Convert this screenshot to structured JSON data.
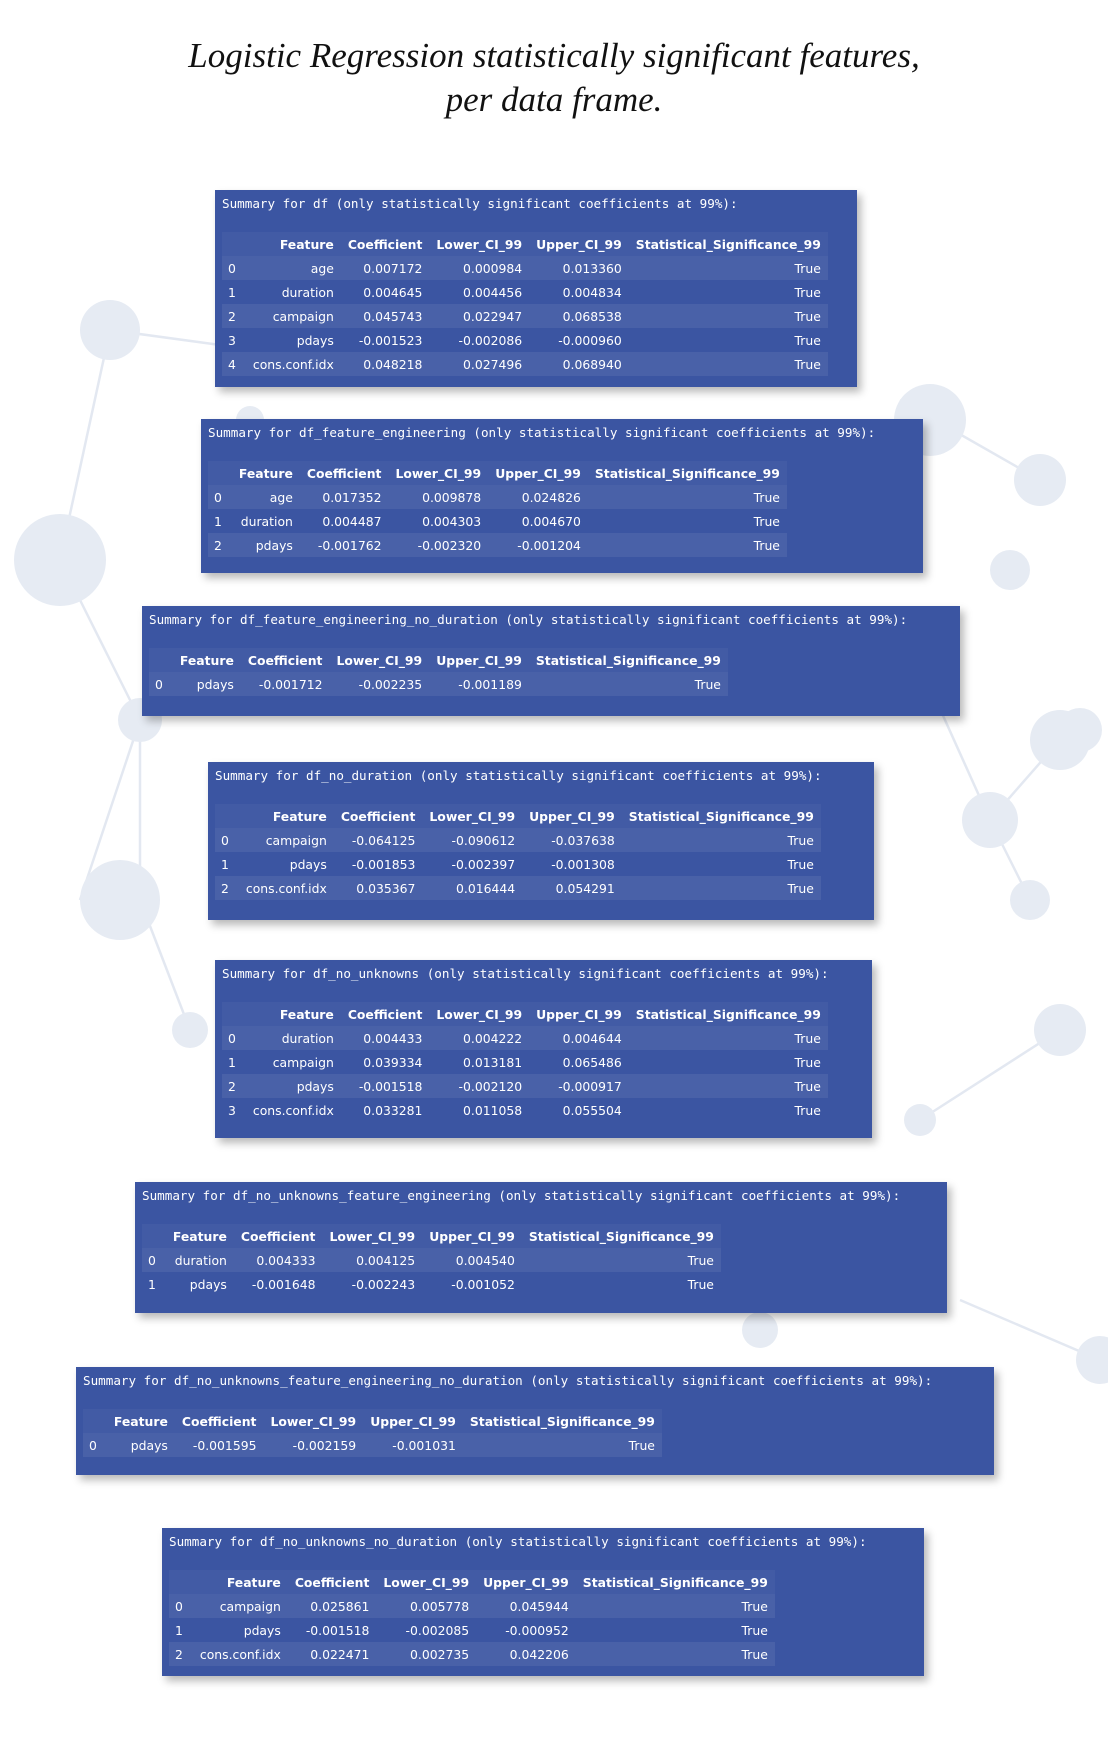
{
  "title": {
    "line1": "Logistic Regression statistically significant features,",
    "line2": "per data frame."
  },
  "columns": [
    "",
    "Feature",
    "Coefficient",
    "Lower_CI_99",
    "Upper_CI_99",
    "Statistical_Significance_99"
  ],
  "panels": [
    {
      "summary": "Summary for df (only statistically significant coefficients at 99%):",
      "rows": [
        [
          "0",
          "age",
          "0.007172",
          "0.000984",
          "0.013360",
          "True"
        ],
        [
          "1",
          "duration",
          "0.004645",
          "0.004456",
          "0.004834",
          "True"
        ],
        [
          "2",
          "campaign",
          "0.045743",
          "0.022947",
          "0.068538",
          "True"
        ],
        [
          "3",
          "pdays",
          "-0.001523",
          "-0.002086",
          "-0.000960",
          "True"
        ],
        [
          "4",
          "cons.conf.idx",
          "0.048218",
          "0.027496",
          "0.068940",
          "True"
        ]
      ]
    },
    {
      "summary": "Summary for df_feature_engineering (only statistically significant coefficients at 99%):",
      "rows": [
        [
          "0",
          "age",
          "0.017352",
          "0.009878",
          "0.024826",
          "True"
        ],
        [
          "1",
          "duration",
          "0.004487",
          "0.004303",
          "0.004670",
          "True"
        ],
        [
          "2",
          "pdays",
          "-0.001762",
          "-0.002320",
          "-0.001204",
          "True"
        ]
      ]
    },
    {
      "summary": "Summary for df_feature_engineering_no_duration (only statistically significant coefficients at 99%):",
      "rows": [
        [
          "0",
          "pdays",
          "-0.001712",
          "-0.002235",
          "-0.001189",
          "True"
        ]
      ]
    },
    {
      "summary": "Summary for df_no_duration (only statistically significant coefficients at 99%):",
      "rows": [
        [
          "0",
          "campaign",
          "-0.064125",
          "-0.090612",
          "-0.037638",
          "True"
        ],
        [
          "1",
          "pdays",
          "-0.001853",
          "-0.002397",
          "-0.001308",
          "True"
        ],
        [
          "2",
          "cons.conf.idx",
          "0.035367",
          "0.016444",
          "0.054291",
          "True"
        ]
      ]
    },
    {
      "summary": "Summary for df_no_unknowns (only statistically significant coefficients at 99%):",
      "rows": [
        [
          "0",
          "duration",
          "0.004433",
          "0.004222",
          "0.004644",
          "True"
        ],
        [
          "1",
          "campaign",
          "0.039334",
          "0.013181",
          "0.065486",
          "True"
        ],
        [
          "2",
          "pdays",
          "-0.001518",
          "-0.002120",
          "-0.000917",
          "True"
        ],
        [
          "3",
          "cons.conf.idx",
          "0.033281",
          "0.011058",
          "0.055504",
          "True"
        ]
      ]
    },
    {
      "summary": "Summary for df_no_unknowns_feature_engineering (only statistically significant coefficients at 99%):",
      "rows": [
        [
          "0",
          "duration",
          "0.004333",
          "0.004125",
          "0.004540",
          "True"
        ],
        [
          "1",
          "pdays",
          "-0.001648",
          "-0.002243",
          "-0.001052",
          "True"
        ]
      ]
    },
    {
      "summary": "Summary for df_no_unknowns_feature_engineering_no_duration (only statistically significant coefficients at 99%):",
      "rows": [
        [
          "0",
          "pdays",
          "-0.001595",
          "-0.002159",
          "-0.001031",
          "True"
        ]
      ]
    },
    {
      "summary": "Summary for df_no_unknowns_no_duration (only statistically significant coefficients at 99%):",
      "rows": [
        [
          "0",
          "campaign",
          "0.025861",
          "0.005778",
          "0.045944",
          "True"
        ],
        [
          "1",
          "pdays",
          "-0.001518",
          "-0.002085",
          "-0.000952",
          "True"
        ],
        [
          "2",
          "cons.conf.idx",
          "0.022471",
          "0.002735",
          "0.042206",
          "True"
        ]
      ]
    }
  ]
}
